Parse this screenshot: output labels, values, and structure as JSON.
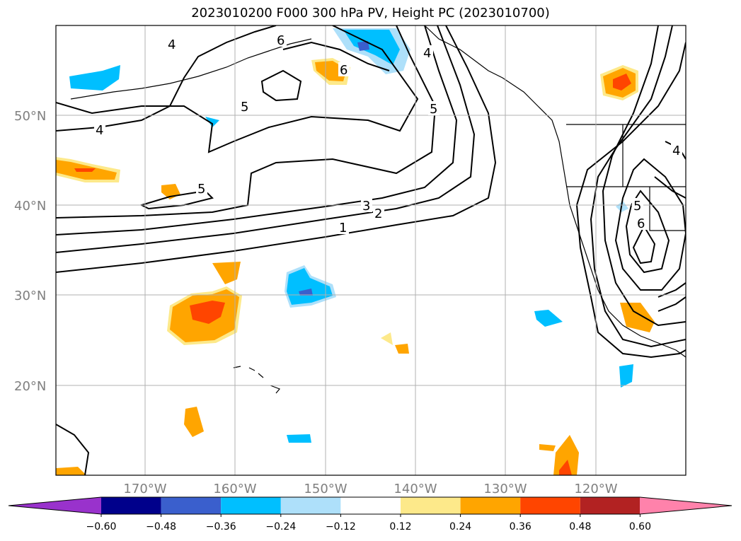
{
  "title": "2023010200 F000 300 hPa PV, Height PC (2023010700)",
  "map": {
    "lat_labels": [
      "50°N",
      "40°N",
      "30°N",
      "20°N"
    ],
    "lon_labels": [
      "170°W",
      "160°W",
      "150°W",
      "140°W",
      "130°W",
      "120°W"
    ],
    "contour_labels": [
      "1",
      "2",
      "3",
      "4",
      "5",
      "6"
    ],
    "fill_colors": {
      "pos_012": "#fde98a",
      "pos_024": "#ffa500",
      "pos_036": "#ff4500",
      "neg_012": "#aee0fa",
      "neg_024": "#00bfff",
      "neg_036": "#3a5fcd"
    }
  },
  "colorbar": {
    "tick_labels": [
      "−0.60",
      "−0.48",
      "−0.36",
      "−0.24",
      "−0.12",
      "0.12",
      "0.24",
      "0.36",
      "0.48",
      "0.60"
    ],
    "colors": [
      "#9932cc",
      "#00008b",
      "#3a5fcd",
      "#00bfff",
      "#aee0fa",
      "#ffffff",
      "#fde98a",
      "#ffa500",
      "#ff4500",
      "#b22222",
      "#ff82ab",
      "#ff82ab"
    ],
    "extend": "both"
  }
}
